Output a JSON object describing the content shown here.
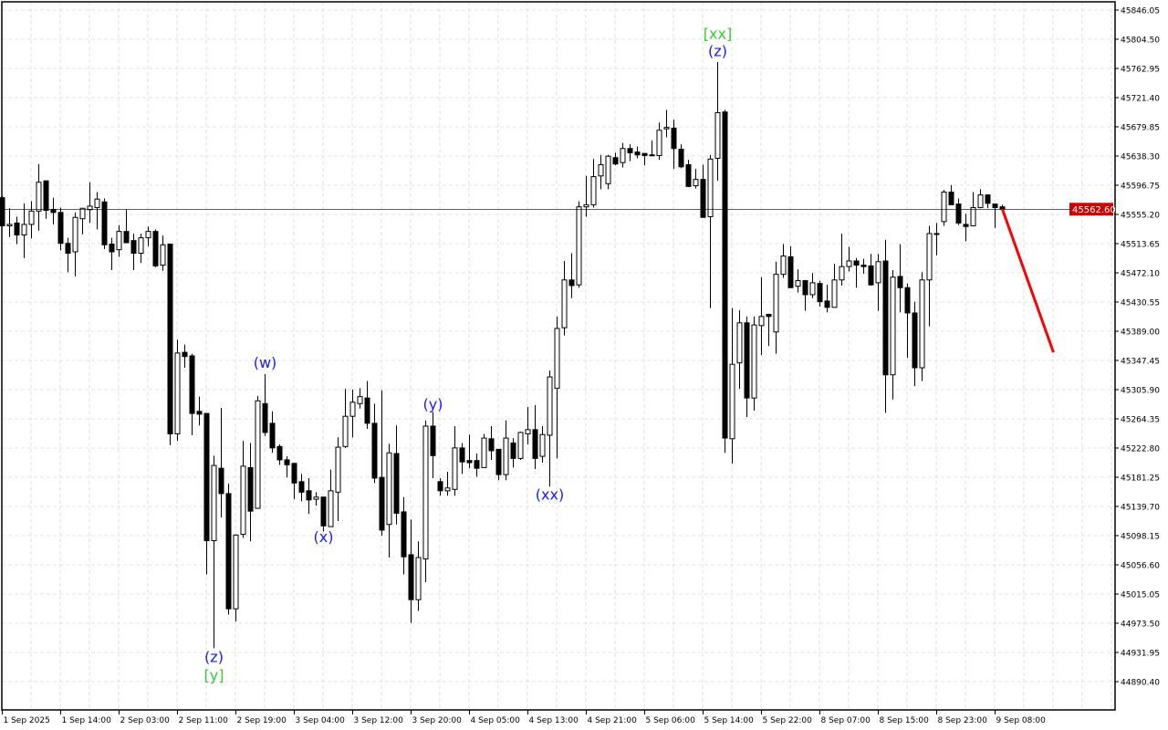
{
  "chart_data": {
    "type": "candlestick",
    "title": "",
    "xlabel": "",
    "ylabel": "",
    "ylim": [
      44850,
      45860
    ],
    "grid": true,
    "y_ticks": [
      "45846.05",
      "45804.50",
      "45762.95",
      "45721.40",
      "45679.85",
      "45638.30",
      "45596.75",
      "45555.20",
      "45513.65",
      "45472.10",
      "45430.55",
      "45389.00",
      "45347.45",
      "45305.90",
      "45264.35",
      "45222.80",
      "45181.25",
      "45139.70",
      "45098.15",
      "45056.60",
      "45015.05",
      "44973.50",
      "44931.95",
      "44890.40"
    ],
    "x_ticks": [
      {
        "bar": 0,
        "label": "1 Sep 2025"
      },
      {
        "bar": 8,
        "label": "1 Sep 14:00"
      },
      {
        "bar": 16,
        "label": "2 Sep 03:00"
      },
      {
        "bar": 24,
        "label": "2 Sep 11:00"
      },
      {
        "bar": 32,
        "label": "2 Sep 19:00"
      },
      {
        "bar": 40,
        "label": "3 Sep 04:00"
      },
      {
        "bar": 48,
        "label": "3 Sep 12:00"
      },
      {
        "bar": 56,
        "label": "3 Sep 20:00"
      },
      {
        "bar": 64,
        "label": "4 Sep 05:00"
      },
      {
        "bar": 72,
        "label": "4 Sep 13:00"
      },
      {
        "bar": 80,
        "label": "4 Sep 21:00"
      },
      {
        "bar": 88,
        "label": "5 Sep 06:00"
      },
      {
        "bar": 96,
        "label": "5 Sep 14:00"
      },
      {
        "bar": 104,
        "label": "5 Sep 22:00"
      },
      {
        "bar": 112,
        "label": "8 Sep 07:00"
      },
      {
        "bar": 120,
        "label": "8 Sep 15:00"
      },
      {
        "bar": 128,
        "label": "8 Sep 23:00"
      },
      {
        "bar": 136,
        "label": "9 Sep 08:00"
      }
    ],
    "candles_ohlc": [
      [
        45579,
        45582,
        45538,
        45539
      ],
      [
        45539,
        45564,
        45523,
        45541
      ],
      [
        45543,
        45552,
        45513,
        45526
      ],
      [
        45526,
        45571,
        45493,
        45541
      ],
      [
        45541,
        45574,
        45521,
        45560
      ],
      [
        45560,
        45627,
        45532,
        45601
      ],
      [
        45603,
        45603,
        45549,
        45561
      ],
      [
        45562,
        45579,
        45541,
        45558
      ],
      [
        45558,
        45565,
        45504,
        45514
      ],
      [
        45514,
        45522,
        45473,
        45500
      ],
      [
        45502,
        45558,
        45467,
        45551
      ],
      [
        45549,
        45564,
        45527,
        45564
      ],
      [
        45562,
        45601,
        45543,
        45567
      ],
      [
        45565,
        45587,
        45534,
        45577
      ],
      [
        45573,
        45578,
        45506,
        45512
      ],
      [
        45513,
        45522,
        45476,
        45502
      ],
      [
        45505,
        45540,
        45495,
        45531
      ],
      [
        45531,
        45562,
        45515,
        45515
      ],
      [
        45518,
        45528,
        45476,
        45500
      ],
      [
        45500,
        45528,
        45486,
        45522
      ],
      [
        45522,
        45538,
        45510,
        45531
      ],
      [
        45531,
        45534,
        45480,
        45482
      ],
      [
        45483,
        45525,
        45475,
        45512
      ],
      [
        45513,
        45513,
        45227,
        45243
      ],
      [
        45243,
        45377,
        45233,
        45358
      ],
      [
        45359,
        45370,
        45337,
        45353
      ],
      [
        45354,
        45357,
        45241,
        45272
      ],
      [
        45275,
        45296,
        45255,
        45271
      ],
      [
        45272,
        45272,
        45043,
        45091
      ],
      [
        45091,
        45212,
        44938,
        45198
      ],
      [
        45194,
        45280,
        45124,
        45158
      ],
      [
        45158,
        45172,
        44986,
        44994
      ],
      [
        44994,
        45100,
        44976,
        45099
      ],
      [
        45100,
        45233,
        45095,
        45197
      ],
      [
        45195,
        45230,
        45090,
        45133
      ],
      [
        45137,
        45297,
        45137,
        45290
      ],
      [
        45286,
        45328,
        45240,
        45245
      ],
      [
        45258,
        45275,
        45216,
        45223
      ],
      [
        45225,
        45228,
        45199,
        45206
      ],
      [
        45206,
        45211,
        45181,
        45199
      ],
      [
        45201,
        45201,
        45150,
        45173
      ],
      [
        45175,
        45186,
        45147,
        45160
      ],
      [
        45162,
        45180,
        45129,
        45149
      ],
      [
        45150,
        45160,
        45141,
        45153
      ],
      [
        45153,
        45153,
        45104,
        45112
      ],
      [
        45111,
        45192,
        45111,
        45162
      ],
      [
        45160,
        45238,
        45119,
        45224
      ],
      [
        45225,
        45307,
        45223,
        45268
      ],
      [
        45268,
        45306,
        45238,
        45288
      ],
      [
        45286,
        45308,
        45279,
        45296
      ],
      [
        45294,
        45318,
        45250,
        45258
      ],
      [
        45258,
        45286,
        45173,
        45180
      ],
      [
        45181,
        45305,
        45098,
        45106
      ],
      [
        45114,
        45229,
        45067,
        45216
      ],
      [
        45215,
        45255,
        45114,
        45130
      ],
      [
        45132,
        45153,
        45043,
        45068
      ],
      [
        45071,
        45121,
        44974,
        45007
      ],
      [
        45007,
        45090,
        44991,
        45067
      ],
      [
        45065,
        45262,
        45032,
        45254
      ],
      [
        45254,
        45274,
        45180,
        45212
      ],
      [
        45175,
        45180,
        45155,
        45162
      ],
      [
        45162,
        45189,
        45155,
        45166
      ],
      [
        45164,
        45254,
        45155,
        45223
      ],
      [
        45223,
        45230,
        45186,
        45203
      ],
      [
        45205,
        45242,
        45194,
        45202
      ],
      [
        45205,
        45215,
        45182,
        45194
      ],
      [
        45195,
        45243,
        45195,
        45237
      ],
      [
        45236,
        45254,
        45206,
        45219
      ],
      [
        45221,
        45221,
        45177,
        45185
      ],
      [
        45185,
        45262,
        45177,
        45237
      ],
      [
        45230,
        45237,
        45195,
        45208
      ],
      [
        45208,
        45246,
        45206,
        45245
      ],
      [
        45243,
        45281,
        45228,
        45249
      ],
      [
        45249,
        45284,
        45193,
        45208
      ],
      [
        45211,
        45254,
        45202,
        45242
      ],
      [
        45241,
        45333,
        45168,
        45324
      ],
      [
        45308,
        45410,
        45208,
        45393
      ],
      [
        45394,
        45489,
        45383,
        45462
      ],
      [
        45462,
        45500,
        45436,
        45454
      ],
      [
        45455,
        45574,
        45451,
        45566
      ],
      [
        45566,
        45610,
        45552,
        45569
      ],
      [
        45569,
        45634,
        45565,
        45609
      ],
      [
        45610,
        45640,
        45591,
        45626
      ],
      [
        45599,
        45640,
        45591,
        45638
      ],
      [
        45636,
        45643,
        45625,
        45627
      ],
      [
        45629,
        45657,
        45622,
        45649
      ],
      [
        45649,
        45655,
        45631,
        45643
      ],
      [
        45644,
        45652,
        45635,
        45640
      ],
      [
        45642,
        45642,
        45625,
        45639
      ],
      [
        45639,
        45660,
        45638,
        45640
      ],
      [
        45639,
        45686,
        45633,
        45675
      ],
      [
        45677,
        45704,
        45665,
        45679
      ],
      [
        45678,
        45690,
        45620,
        45649
      ],
      [
        45648,
        45655,
        45621,
        45623
      ],
      [
        45626,
        45633,
        45594,
        45595
      ],
      [
        45596,
        45620,
        45592,
        45605
      ],
      [
        45605,
        45626,
        45551,
        45551
      ],
      [
        45552,
        45640,
        45422,
        45634
      ],
      [
        45635,
        45772,
        45603,
        45700
      ],
      [
        45701,
        45704,
        45216,
        45237
      ],
      [
        45236,
        45422,
        45201,
        45342
      ],
      [
        45344,
        45419,
        45307,
        45401
      ],
      [
        45401,
        45410,
        45267,
        45294
      ],
      [
        45294,
        45410,
        45276,
        45398
      ],
      [
        45397,
        45466,
        45355,
        45410
      ],
      [
        45413,
        45414,
        45368,
        45410
      ],
      [
        45388,
        45488,
        45357,
        45470
      ],
      [
        45470,
        45513,
        45465,
        45496
      ],
      [
        45495,
        45510,
        45451,
        45451
      ],
      [
        45453,
        45477,
        45444,
        45461
      ],
      [
        45461,
        45462,
        45418,
        45441
      ],
      [
        45441,
        45472,
        45436,
        45458
      ],
      [
        45457,
        45461,
        45424,
        45431
      ],
      [
        45432,
        45455,
        45416,
        45423
      ],
      [
        45423,
        45485,
        45423,
        45462
      ],
      [
        45462,
        45528,
        45454,
        45481
      ],
      [
        45481,
        45509,
        45474,
        45489
      ],
      [
        45489,
        45493,
        45451,
        45483
      ],
      [
        45483,
        45492,
        45471,
        45481
      ],
      [
        45482,
        45499,
        45454,
        45455
      ],
      [
        45458,
        45499,
        45418,
        45488
      ],
      [
        45489,
        45519,
        45273,
        45327
      ],
      [
        45327,
        45476,
        45292,
        45466
      ],
      [
        45467,
        45513,
        45416,
        45451
      ],
      [
        45451,
        45457,
        45351,
        45415
      ],
      [
        45415,
        45431,
        45311,
        45337
      ],
      [
        45337,
        45473,
        45318,
        45462
      ],
      [
        45462,
        45539,
        45396,
        45528
      ],
      [
        45527,
        45543,
        45497,
        45528
      ],
      [
        45545,
        45590,
        45539,
        45587
      ],
      [
        45587,
        45597,
        45569,
        45569
      ],
      [
        45570,
        45578,
        45540,
        45543
      ],
      [
        45541,
        45556,
        45517,
        45538
      ],
      [
        45539,
        45587,
        45539,
        45565
      ],
      [
        45565,
        45591,
        45564,
        45583
      ],
      [
        45583,
        45583,
        45564,
        45571
      ],
      [
        45570,
        45570,
        45536,
        45565
      ],
      [
        45566,
        45569,
        45562.6,
        45562.6
      ]
    ],
    "current_price": {
      "label": "45562.60",
      "value": 45562.6
    },
    "forecast_line": {
      "from_price": 45562.6,
      "to_price": 45359,
      "bars_ahead": 7,
      "color": "#ff0000"
    },
    "wave_labels": [
      {
        "text": "(z)",
        "bar": 29,
        "price": 44926,
        "color": "#1a1aff"
      },
      {
        "text": "[y]",
        "bar": 29,
        "price": 44900,
        "color": "#33cc33"
      },
      {
        "text": "(w)",
        "bar": 36,
        "price": 45345,
        "color": "#1a1aff"
      },
      {
        "text": "(x)",
        "bar": 44,
        "price": 45097,
        "color": "#1a1aff"
      },
      {
        "text": "(y)",
        "bar": 59,
        "price": 45286,
        "color": "#1a1aff"
      },
      {
        "text": "(xx)",
        "bar": 75,
        "price": 45157,
        "color": "#1a1aff"
      },
      {
        "text": "[xx]",
        "bar": 98,
        "price": 45813,
        "color": "#33cc33"
      },
      {
        "text": "(z)",
        "bar": 98,
        "price": 45788,
        "color": "#1a1aff"
      }
    ],
    "colors": {
      "up_body": "#ffffff",
      "down_body": "#000000",
      "outline": "#000000",
      "grid": "#e0e0e0",
      "price_tag": "#cc0000"
    }
  }
}
